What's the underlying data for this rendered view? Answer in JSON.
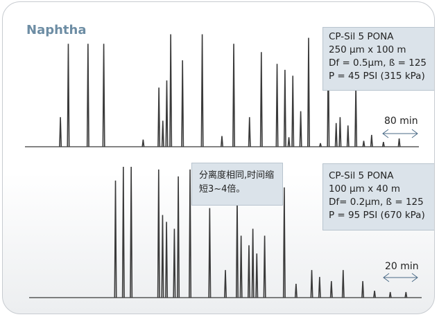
{
  "title": "Naphtha",
  "top_params": [
    "CP-Sil 5 PONA",
    "250 µm x 100 m",
    "Df = 0.5µm, ß = 125",
    "P = 45 PSI (315 kPa)"
  ],
  "bottom_params": [
    "CP-Sil 5 PONA",
    "100 µm x 40 m",
    "Df= 0.2µm, ß = 125",
    "P = 95 PSI (670 kPa)"
  ],
  "note": "分离度相同,时间缩短3~4倍。",
  "top_duration": "80 min",
  "bottom_duration": "20 min",
  "colors": {
    "title": "#6d8da4",
    "trace": "#3a3a3a",
    "box_fill": "#dbe3ea",
    "box_border": "#b8c4ce"
  },
  "chart_data": [
    {
      "type": "line",
      "subtype": "chromatogram",
      "title": "Naphtha",
      "duration": "80 min",
      "peaks": [
        {
          "t": 0.09,
          "h": 0.25
        },
        {
          "t": 0.11,
          "h": 0.87
        },
        {
          "t": 0.16,
          "h": 0.87
        },
        {
          "t": 0.2,
          "h": 0.87
        },
        {
          "t": 0.3,
          "h": 0.06
        },
        {
          "t": 0.34,
          "h": 0.5
        },
        {
          "t": 0.35,
          "h": 0.22
        },
        {
          "t": 0.36,
          "h": 0.56
        },
        {
          "t": 0.37,
          "h": 0.95
        },
        {
          "t": 0.4,
          "h": 0.73
        },
        {
          "t": 0.45,
          "h": 0.95
        },
        {
          "t": 0.5,
          "h": 0.09
        },
        {
          "t": 0.53,
          "h": 0.87
        },
        {
          "t": 0.57,
          "h": 0.25
        },
        {
          "t": 0.6,
          "h": 0.8
        },
        {
          "t": 0.64,
          "h": 0.7
        },
        {
          "t": 0.66,
          "h": 0.65
        },
        {
          "t": 0.67,
          "h": 0.08
        },
        {
          "t": 0.68,
          "h": 0.6
        },
        {
          "t": 0.7,
          "h": 0.3
        },
        {
          "t": 0.72,
          "h": 0.92
        },
        {
          "t": 0.75,
          "h": 0.03
        },
        {
          "t": 0.77,
          "h": 0.83
        },
        {
          "t": 0.79,
          "h": 0.2
        },
        {
          "t": 0.8,
          "h": 0.25
        },
        {
          "t": 0.82,
          "h": 0.18
        },
        {
          "t": 0.84,
          "h": 0.52
        },
        {
          "t": 0.86,
          "h": 0.05
        },
        {
          "t": 0.88,
          "h": 0.1
        },
        {
          "t": 0.91,
          "h": 0.04
        },
        {
          "t": 0.95,
          "h": 0.07
        }
      ]
    },
    {
      "type": "line",
      "subtype": "chromatogram",
      "duration": "20 min",
      "peaks": [
        {
          "t": 0.22,
          "h": 0.85
        },
        {
          "t": 0.24,
          "h": 0.95
        },
        {
          "t": 0.26,
          "h": 0.95
        },
        {
          "t": 0.33,
          "h": 0.93
        },
        {
          "t": 0.34,
          "h": 0.6
        },
        {
          "t": 0.35,
          "h": 0.55
        },
        {
          "t": 0.37,
          "h": 0.5
        },
        {
          "t": 0.38,
          "h": 0.88
        },
        {
          "t": 0.41,
          "h": 0.93
        },
        {
          "t": 0.46,
          "h": 0.65
        },
        {
          "t": 0.5,
          "h": 0.2
        },
        {
          "t": 0.53,
          "h": 0.72
        },
        {
          "t": 0.54,
          "h": 0.45
        },
        {
          "t": 0.56,
          "h": 0.38
        },
        {
          "t": 0.57,
          "h": 0.5
        },
        {
          "t": 0.58,
          "h": 0.32
        },
        {
          "t": 0.6,
          "h": 0.45
        },
        {
          "t": 0.65,
          "h": 0.8
        },
        {
          "t": 0.68,
          "h": 0.1
        },
        {
          "t": 0.72,
          "h": 0.2
        },
        {
          "t": 0.74,
          "h": 0.15
        },
        {
          "t": 0.77,
          "h": 0.12
        },
        {
          "t": 0.8,
          "h": 0.2
        },
        {
          "t": 0.85,
          "h": 0.12
        },
        {
          "t": 0.88,
          "h": 0.05
        },
        {
          "t": 0.92,
          "h": 0.04
        },
        {
          "t": 0.96,
          "h": 0.04
        }
      ]
    }
  ]
}
